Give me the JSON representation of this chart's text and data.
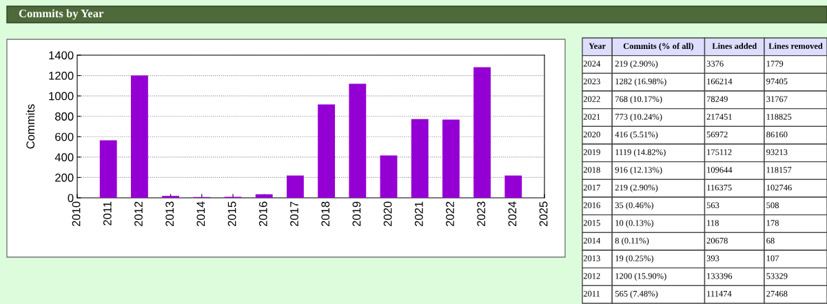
{
  "chart_data": [
    {
      "type": "bar",
      "title": "Commits by Year",
      "ylabel": "Commits",
      "color": "#9400d3",
      "x": [
        2011,
        2012,
        2013,
        2014,
        2015,
        2016,
        2017,
        2018,
        2019,
        2020,
        2021,
        2022,
        2023,
        2024
      ],
      "values": [
        565,
        1200,
        19,
        8,
        10,
        35,
        219,
        916,
        1119,
        416,
        773,
        768,
        1282,
        219
      ],
      "xlim": [
        2010,
        2025
      ],
      "xticks": [
        2010,
        2011,
        2012,
        2013,
        2014,
        2015,
        2016,
        2017,
        2018,
        2019,
        2020,
        2021,
        2022,
        2023,
        2024,
        2025
      ],
      "ylim": [
        0,
        1400
      ],
      "yticks": [
        0,
        200,
        400,
        600,
        800,
        1000,
        1200,
        1400
      ],
      "grid": "y"
    },
    {
      "type": "heatmap",
      "ylabel": "Year",
      "categories": [
        "Commits (% of all)",
        "Lines added",
        "Lines removed"
      ],
      "y_categories": [
        "2024",
        "2023",
        "2022",
        "2021",
        "2020",
        "2019",
        "2018",
        "2017",
        "2016",
        "2015",
        "2014",
        "2013",
        "2012",
        "2011"
      ],
      "cells": [
        [
          null,
          null,
          null
        ],
        [
          null,
          null,
          null
        ],
        [
          null,
          null,
          null
        ],
        [
          null,
          null,
          null
        ],
        [
          null,
          null,
          null
        ],
        [
          null,
          null,
          null
        ],
        [
          null,
          null,
          null
        ],
        [
          null,
          null,
          null
        ],
        [
          null,
          null,
          null
        ],
        [
          null,
          null,
          null
        ],
        [
          null,
          null,
          null
        ],
        [
          null,
          null,
          null
        ],
        [
          null,
          null,
          null
        ],
        [
          null,
          null,
          null
        ]
      ],
      "cell_labels": [
        [
          "219 (2.90%)",
          "3376",
          "1779"
        ],
        [
          "1282 (16.98%)",
          "166214",
          "97405"
        ],
        [
          "768 (10.17%)",
          "78249",
          "31767"
        ],
        [
          "773 (10.24%)",
          "217451",
          "118825"
        ],
        [
          "416 (5.51%)",
          "56972",
          "86160"
        ],
        [
          "1119 (14.82%)",
          "175112",
          "93213"
        ],
        [
          "916 (12.13%)",
          "109644",
          "118157"
        ],
        [
          "219 (2.90%)",
          "116375",
          "102746"
        ],
        [
          "35 (0.46%)",
          "563",
          "508"
        ],
        [
          "10 (0.13%)",
          "118",
          "178"
        ],
        [
          "8 (0.11%)",
          "20678",
          "68"
        ],
        [
          "19 (0.25%)",
          "393",
          "107"
        ],
        [
          "1200 (15.90%)",
          "133396",
          "53329"
        ],
        [
          "565 (7.48%)",
          "111474",
          "27468"
        ]
      ]
    }
  ]
}
